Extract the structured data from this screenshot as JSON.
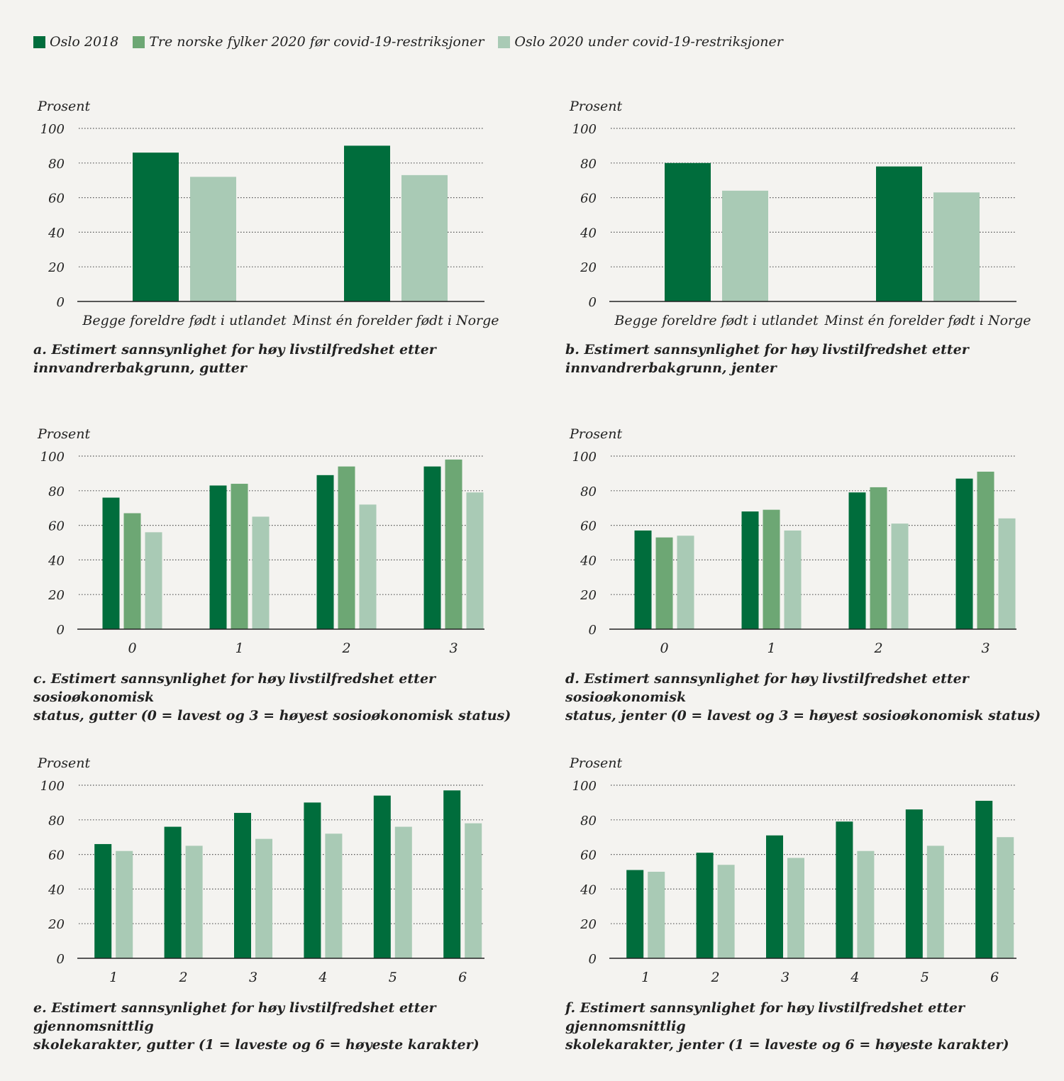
{
  "legend": [
    {
      "label": "Oslo 2018",
      "color": "#006d3c"
    },
    {
      "label": "Tre norske fylker 2020 før covid-19-restriksjoner",
      "color": "#6da774"
    },
    {
      "label": "Oslo 2020 under covid-19-restriksjoner",
      "color": "#a9cab5"
    }
  ],
  "chart_data": [
    {
      "id": "a",
      "type": "bar",
      "ylabel": "Prosent",
      "ylim": [
        0,
        100
      ],
      "yticks": [
        0,
        20,
        40,
        60,
        80,
        100
      ],
      "categories": [
        "Begge foreldre født i utlandet",
        "Minst én forelder født i Norge"
      ],
      "series": [
        {
          "name": "Oslo 2018",
          "color": "#006d3c",
          "values": [
            86,
            90
          ]
        },
        {
          "name": "Oslo 2020 under covid-19-restriksjoner",
          "color": "#a9cab5",
          "values": [
            72,
            73
          ]
        }
      ],
      "caption": [
        "a. Estimert sannsynlighet for høy livstilfredshet etter",
        "innvandrerbakgrunn, gutter"
      ]
    },
    {
      "id": "b",
      "type": "bar",
      "ylabel": "Prosent",
      "ylim": [
        0,
        100
      ],
      "yticks": [
        0,
        20,
        40,
        60,
        80,
        100
      ],
      "categories": [
        "Begge foreldre født i utlandet",
        "Minst én forelder født i Norge"
      ],
      "series": [
        {
          "name": "Oslo 2018",
          "color": "#006d3c",
          "values": [
            80,
            78
          ]
        },
        {
          "name": "Oslo 2020 under covid-19-restriksjoner",
          "color": "#a9cab5",
          "values": [
            64,
            63
          ]
        }
      ],
      "caption": [
        "b. Estimert sannsynlighet for høy livstilfredshet etter",
        "innvandrerbakgrunn, jenter"
      ]
    },
    {
      "id": "c",
      "type": "bar",
      "ylabel": "Prosent",
      "ylim": [
        0,
        100
      ],
      "yticks": [
        0,
        20,
        40,
        60,
        80,
        100
      ],
      "categories": [
        "0",
        "1",
        "2",
        "3"
      ],
      "series": [
        {
          "name": "Oslo 2018",
          "color": "#006d3c",
          "values": [
            76,
            83,
            89,
            94
          ]
        },
        {
          "name": "Tre norske fylker 2020 før covid-19-restriksjoner",
          "color": "#6da774",
          "values": [
            67,
            84,
            94,
            98
          ]
        },
        {
          "name": "Oslo 2020 under covid-19-restriksjoner",
          "color": "#a9cab5",
          "values": [
            56,
            65,
            72,
            79
          ]
        }
      ],
      "caption": [
        "c.  Estimert sannsynlighet for høy livstilfredshet etter sosioøkonomisk",
        "status, gutter (0 = lavest og 3 = høyest sosioøkonomisk status)"
      ]
    },
    {
      "id": "d",
      "type": "bar",
      "ylabel": "Prosent",
      "ylim": [
        0,
        100
      ],
      "yticks": [
        0,
        20,
        40,
        60,
        80,
        100
      ],
      "categories": [
        "0",
        "1",
        "2",
        "3"
      ],
      "series": [
        {
          "name": "Oslo 2018",
          "color": "#006d3c",
          "values": [
            57,
            68,
            79,
            87
          ]
        },
        {
          "name": "Tre norske fylker 2020 før covid-19-restriksjoner",
          "color": "#6da774",
          "values": [
            53,
            69,
            82,
            91
          ]
        },
        {
          "name": "Oslo 2020 under covid-19-restriksjoner",
          "color": "#a9cab5",
          "values": [
            54,
            57,
            61,
            64
          ]
        }
      ],
      "caption": [
        "d. Estimert sannsynlighet for høy livstilfredshet etter sosioøkonomisk",
        "status, jenter (0 = lavest og 3 = høyest sosioøkonomisk status)"
      ]
    },
    {
      "id": "e",
      "type": "bar",
      "ylabel": "Prosent",
      "ylim": [
        0,
        100
      ],
      "yticks": [
        0,
        20,
        40,
        60,
        80,
        100
      ],
      "categories": [
        "1",
        "2",
        "3",
        "4",
        "5",
        "6"
      ],
      "series": [
        {
          "name": "Oslo 2018",
          "color": "#006d3c",
          "values": [
            66,
            76,
            84,
            90,
            94,
            97
          ]
        },
        {
          "name": "Oslo 2020 under covid-19-restriksjoner",
          "color": "#a9cab5",
          "values": [
            62,
            65,
            69,
            72,
            76,
            78
          ]
        }
      ],
      "caption": [
        "e. Estimert sannsynlighet for høy livstilfredshet etter gjennomsnittlig",
        "skolekarakter, gutter (1 = laveste og 6 = høyeste karakter)"
      ]
    },
    {
      "id": "f",
      "type": "bar",
      "ylabel": "Prosent",
      "ylim": [
        0,
        100
      ],
      "yticks": [
        0,
        20,
        40,
        60,
        80,
        100
      ],
      "categories": [
        "1",
        "2",
        "3",
        "4",
        "5",
        "6"
      ],
      "series": [
        {
          "name": "Oslo 2018",
          "color": "#006d3c",
          "values": [
            51,
            61,
            71,
            79,
            86,
            91
          ]
        },
        {
          "name": "Oslo 2020 under covid-19-restriksjoner",
          "color": "#a9cab5",
          "values": [
            50,
            54,
            58,
            62,
            65,
            70
          ]
        }
      ],
      "caption": [
        "f. Estimert sannsynlighet for høy livstilfredshet etter gjennomsnittlig",
        "skolekarakter, jenter (1 = laveste og 6 = høyeste karakter)"
      ]
    }
  ]
}
